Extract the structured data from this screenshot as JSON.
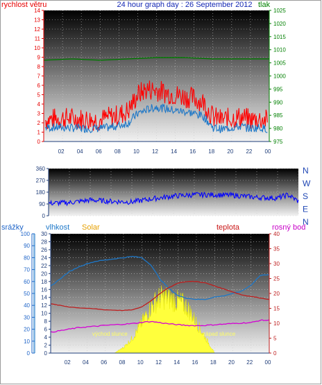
{
  "chart_data": [
    {
      "type": "line",
      "title": "24 hour graph day : 26 September 2012",
      "left_axis_label": "rychlost větru",
      "right_axis_label": "tlak",
      "x_tick_labels": [
        "02",
        "04",
        "06",
        "08",
        "10",
        "12",
        "14",
        "16",
        "18",
        "20",
        "22",
        "00"
      ],
      "left_axis": {
        "range": [
          0,
          14
        ],
        "ticks": [
          0,
          1,
          2,
          3,
          4,
          5,
          6,
          7,
          8,
          9,
          10,
          11,
          12,
          13,
          14
        ]
      },
      "right_axis": {
        "range": [
          975,
          1025
        ],
        "ticks": [
          975,
          980,
          985,
          990,
          995,
          1000,
          1005,
          1010,
          1015,
          1020,
          1025
        ]
      },
      "grid": true,
      "series": [
        {
          "kind": "wind gust",
          "color": "#ff0000",
          "x_hours": [
            0,
            2,
            4,
            6,
            7,
            8,
            9,
            10,
            11,
            12,
            13,
            14,
            15,
            16,
            17,
            18,
            19,
            20,
            21,
            22,
            23,
            24
          ],
          "values": [
            2.3,
            2.5,
            2.4,
            2.3,
            2.6,
            2.8,
            3.3,
            5.0,
            5.6,
            5.5,
            5.2,
            5.0,
            4.8,
            4.6,
            4.2,
            2.6,
            2.3,
            2.5,
            2.6,
            2.3,
            2.4,
            2.2
          ]
        },
        {
          "kind": "wind average",
          "color": "#1e78c8",
          "x_hours": [
            0,
            2,
            4,
            6,
            7,
            8,
            9,
            10,
            11,
            12,
            13,
            14,
            15,
            16,
            17,
            18,
            19,
            20,
            21,
            22,
            23,
            24
          ],
          "values": [
            1.5,
            1.5,
            1.4,
            1.4,
            1.5,
            1.7,
            2.0,
            3.0,
            3.4,
            3.7,
            3.5,
            3.3,
            3.2,
            3.0,
            2.7,
            1.5,
            1.3,
            1.5,
            1.6,
            1.4,
            1.5,
            1.3
          ]
        },
        {
          "kind": "pressure",
          "color": "#007800",
          "axis": "right",
          "x_hours": [
            0,
            3,
            6,
            9,
            12,
            15,
            18,
            21,
            24
          ],
          "values": [
            1006,
            1006.5,
            1006,
            1006.5,
            1007,
            1007,
            1006.5,
            1006.5,
            1006.5
          ]
        }
      ]
    },
    {
      "type": "line",
      "left_axis": {
        "range": [
          0,
          360
        ],
        "ticks": [
          0,
          90,
          180,
          270,
          360
        ]
      },
      "right_axis_labels": [
        "N",
        "W",
        "S",
        "E",
        "N"
      ],
      "grid": true,
      "series": [
        {
          "kind": "wind direction",
          "color": "#0000ff",
          "x_hours": [
            0,
            2,
            4,
            6,
            8,
            10,
            12,
            14,
            16,
            18,
            20,
            22,
            23,
            24
          ],
          "values": [
            95,
            100,
            120,
            110,
            105,
            130,
            150,
            160,
            160,
            155,
            140,
            135,
            160,
            110
          ]
        }
      ]
    },
    {
      "type": "area",
      "header_labels": {
        "rain": "srážky",
        "humidity": "vlhkost",
        "solar": "Solar",
        "temperature": "teplota",
        "dew_point": "rosný bod"
      },
      "x_tick_labels": [
        "02",
        "04",
        "06",
        "08",
        "10",
        "12",
        "14",
        "16",
        "18",
        "20",
        "22",
        "00"
      ],
      "axis_rain": {
        "range": [
          0,
          100
        ],
        "ticks": [
          0,
          10,
          20,
          30,
          40,
          50,
          60,
          70,
          80,
          90,
          100
        ]
      },
      "axis_humidity_solar": {
        "range": [
          0,
          30
        ],
        "ticks": [
          0,
          2,
          4,
          6,
          8,
          10,
          12,
          14,
          16,
          18,
          20,
          22,
          24,
          26,
          28,
          30
        ]
      },
      "axis_temperature": {
        "range": [
          0,
          40
        ],
        "ticks": [
          0,
          5,
          10,
          15,
          20,
          25,
          30,
          35,
          40
        ]
      },
      "annotations": [
        "východ slunce",
        "západ slunce"
      ],
      "grid": true,
      "series": [
        {
          "kind": "humidity",
          "color": "#1e78c8",
          "axis": "rain",
          "x_hours": [
            0,
            1,
            2,
            3,
            4,
            5,
            6,
            7,
            8,
            9,
            10,
            11,
            12,
            13,
            14,
            15,
            16,
            17,
            18,
            19,
            20,
            21,
            22,
            23,
            24
          ],
          "values": [
            56,
            62,
            68,
            72,
            75,
            77,
            78,
            79,
            80,
            81,
            80,
            74,
            62,
            54,
            48,
            46,
            45,
            45,
            47,
            48,
            50,
            52,
            57,
            65,
            66
          ]
        },
        {
          "kind": "temperature",
          "color": "#be1e1e",
          "axis": "temperature",
          "x_hours": [
            0,
            1,
            2,
            3,
            4,
            5,
            6,
            7,
            8,
            9,
            10,
            11,
            12,
            13,
            14,
            15,
            16,
            17,
            18,
            19,
            20,
            21,
            22,
            23,
            24
          ],
          "values": [
            16.5,
            16,
            15.5,
            15.2,
            15,
            14.8,
            14.5,
            14.4,
            14.3,
            14.5,
            15.5,
            17.5,
            20,
            22,
            23.5,
            24,
            24,
            23.5,
            22.5,
            21.5,
            20.5,
            19.5,
            19,
            18.5,
            18
          ]
        },
        {
          "kind": "dew point",
          "color": "#d400d4",
          "axis": "temperature",
          "x_hours": [
            0,
            1,
            2,
            3,
            4,
            5,
            6,
            7,
            8,
            9,
            10,
            11,
            12,
            13,
            14,
            15,
            16,
            17,
            18,
            19,
            20,
            21,
            22,
            23,
            24
          ],
          "values": [
            7,
            7.5,
            8,
            8.5,
            8.8,
            9,
            9.3,
            9.5,
            9.7,
            9.9,
            10.3,
            10.6,
            10.2,
            9.8,
            9.5,
            9.3,
            9.2,
            9.3,
            9.5,
            9.7,
            9.9,
            10.1,
            10.2,
            11,
            11
          ]
        },
        {
          "kind": "solar",
          "color": "#ffff3c",
          "axis": "humidity_solar",
          "x_hours": [
            7,
            8,
            9,
            9.5,
            10,
            10.5,
            11,
            11.5,
            12,
            12.5,
            13,
            13.5,
            14,
            14.5,
            15,
            15.5,
            16,
            16.5,
            17,
            17.5,
            18
          ],
          "values": [
            0,
            1.5,
            4,
            6,
            8,
            10,
            12,
            13.5,
            14.5,
            14.8,
            14.5,
            14,
            13.5,
            13,
            12,
            10,
            8,
            6,
            4,
            2,
            0
          ]
        }
      ]
    }
  ]
}
